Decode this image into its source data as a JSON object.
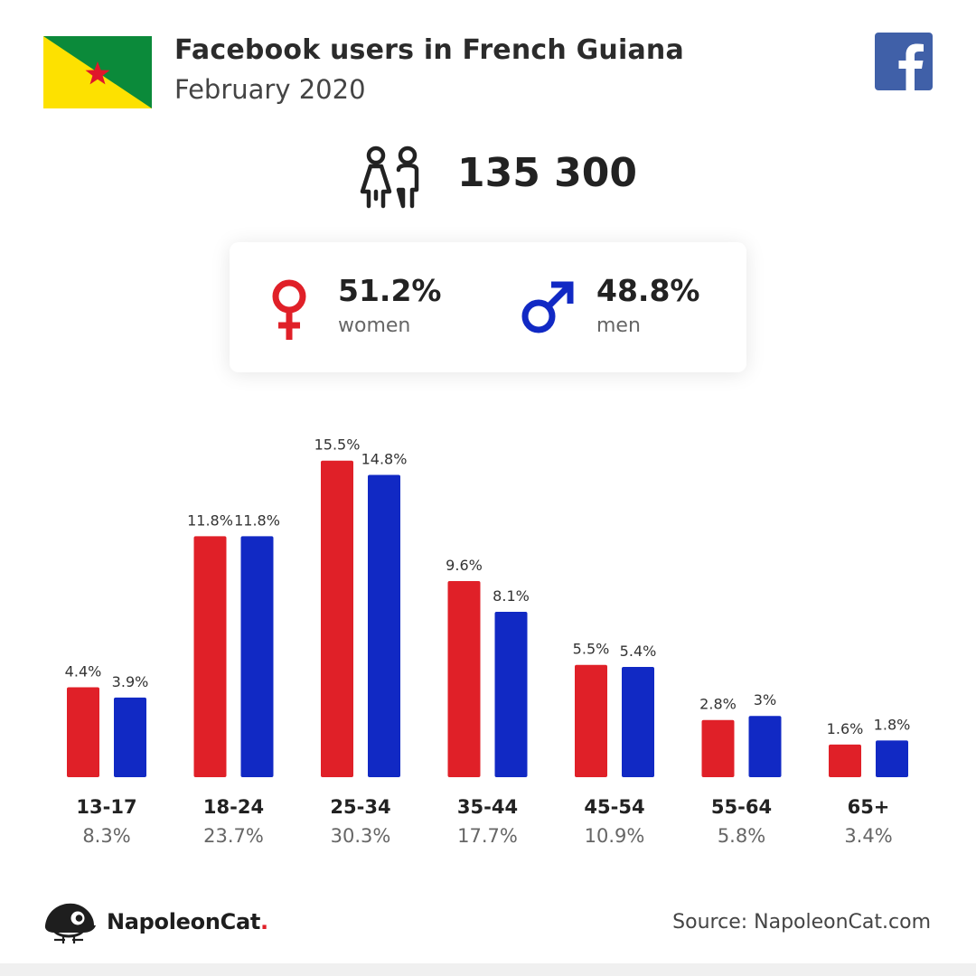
{
  "header": {
    "title": "Facebook users in French Guiana",
    "subtitle": "February 2020",
    "flag_icon": "flag-french-guiana-icon",
    "brand_icon": "facebook-logo-icon"
  },
  "total": {
    "icon": "users-couple-icon",
    "value": "135 300"
  },
  "gender": {
    "women": {
      "percent": "51.2%",
      "label": "women",
      "icon": "female-symbol-icon",
      "color": "#e02028"
    },
    "men": {
      "percent": "48.8%",
      "label": "men",
      "icon": "male-symbol-icon",
      "color": "#1129c4"
    }
  },
  "chart_data": {
    "type": "bar",
    "categories": [
      "13-17",
      "18-24",
      "25-34",
      "35-44",
      "45-54",
      "55-64",
      "65+"
    ],
    "category_totals": [
      "8.3%",
      "23.7%",
      "30.3%",
      "17.7%",
      "10.9%",
      "5.8%",
      "3.4%"
    ],
    "series": [
      {
        "values": [
          4.4,
          11.8,
          15.5,
          9.6,
          5.5,
          2.8,
          1.6
        ],
        "labels": [
          "4.4%",
          "11.8%",
          "15.5%",
          "9.6%",
          "5.5%",
          "2.8%",
          "1.6%"
        ],
        "color": "#e02028"
      },
      {
        "values": [
          3.9,
          11.8,
          14.8,
          8.1,
          5.4,
          3.0,
          1.8
        ],
        "labels": [
          "3.9%",
          "11.8%",
          "14.8%",
          "8.1%",
          "5.4%",
          "3%",
          "1.8%"
        ],
        "color": "#1129c4"
      }
    ],
    "grid": false
  },
  "footer": {
    "brand_name": "NapoleonCat",
    "brand_dot": ".",
    "brand_icon": "napoleoncat-logo-icon",
    "source": "Source: NapoleonCat.com"
  },
  "colors": {
    "female": "#e02028",
    "male": "#1129c4",
    "facebook": "#4060a8",
    "flag_green": "#0b8a3a",
    "flag_yellow": "#fde100"
  }
}
